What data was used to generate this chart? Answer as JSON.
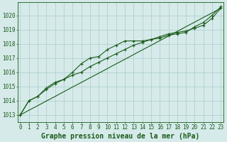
{
  "title": "Graphe pression niveau de la mer (hPa)",
  "bg_color": "#d6eaea",
  "line_color": "#1a5c1a",
  "grid_color": "#b0d0d0",
  "x_values": [
    0,
    1,
    2,
    3,
    4,
    5,
    6,
    7,
    8,
    9,
    10,
    11,
    12,
    13,
    14,
    15,
    16,
    17,
    18,
    19,
    20,
    21,
    22,
    23
  ],
  "line1": [
    1013.0,
    1014.0,
    1014.3,
    1014.8,
    1015.2,
    1015.5,
    1015.8,
    1016.0,
    1016.4,
    1016.7,
    1017.0,
    1017.3,
    1017.6,
    1017.9,
    1018.1,
    1018.3,
    1018.5,
    1018.7,
    1018.8,
    1018.9,
    1019.1,
    1019.3,
    1019.8,
    1020.5
  ],
  "line2": [
    1013.0,
    1014.0,
    1014.3,
    1014.9,
    1015.3,
    1015.5,
    1016.0,
    1016.6,
    1017.0,
    1017.1,
    1017.6,
    1017.9,
    1018.2,
    1018.2,
    1018.2,
    1018.3,
    1018.4,
    1018.6,
    1018.7,
    1018.8,
    1019.2,
    1019.5,
    1020.0,
    1020.6
  ],
  "line_straight": [
    1013.0,
    1013.33,
    1013.65,
    1013.98,
    1014.3,
    1014.63,
    1014.96,
    1015.28,
    1015.61,
    1015.93,
    1016.26,
    1016.59,
    1016.91,
    1017.24,
    1017.57,
    1017.89,
    1018.22,
    1018.54,
    1018.87,
    1019.2,
    1019.52,
    1019.85,
    1020.17,
    1020.5
  ],
  "ylim_min": 1012.5,
  "ylim_max": 1020.9,
  "yticks": [
    1013,
    1014,
    1015,
    1016,
    1017,
    1018,
    1019,
    1020
  ],
  "title_fontsize": 7.0,
  "tick_fontsize": 5.5,
  "figsize": [
    3.2,
    2.0
  ],
  "dpi": 100
}
